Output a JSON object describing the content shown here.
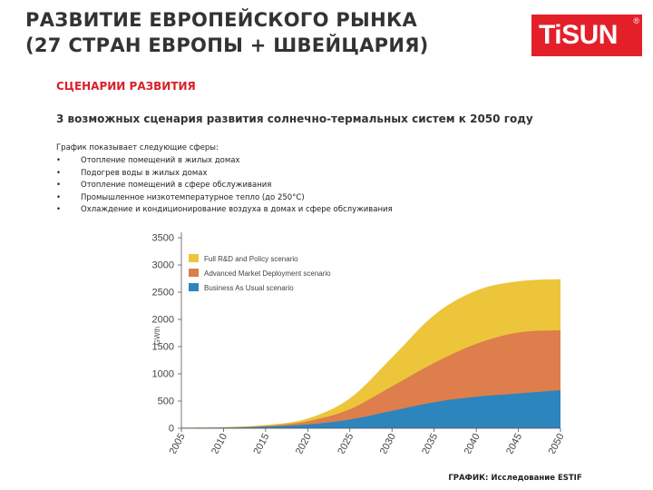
{
  "header": {
    "title_line1": "РАЗВИТИЕ ЕВРОПЕЙСКОГО РЫНКА",
    "title_line2": "(27 СТРАН ЕВРОПЫ + ШВЕЙЦАРИЯ)",
    "logo_text": "TiSUN",
    "logo_reg": "®"
  },
  "subtitle": "СЦЕНАРИИ РАЗВИТИЯ",
  "lead": "3 возможных сценария развития солнечно-термальных систем к 2050 году",
  "intro": "График показывает следующие сферы:",
  "bullets": [
    "Отопление помещений в жилых домах",
    "Подогрев воды в жилых домах",
    "Отопление помещений в сфере обслуживания",
    "Промышленное низкотемпературное тепло (до 250°C)",
    "Охлаждение и кондиционирование воздуха в домах и сфере обслуживания"
  ],
  "bullet_symbol": "•",
  "source": "ГРАФИК: Исследование ESTIF",
  "colors": {
    "brand_red": "#e3202a",
    "subtitle_red": "#d8202a",
    "full_rd": "#ecc53a",
    "advanced": "#dd7e4c",
    "bau": "#2d85bd"
  },
  "chart_data": {
    "type": "area",
    "stacked": true,
    "x": [
      2005,
      2010,
      2015,
      2020,
      2025,
      2030,
      2035,
      2040,
      2045,
      2050
    ],
    "xticks": [
      "2005",
      "2010",
      "2015",
      "2020",
      "2025",
      "2030",
      "2035",
      "2040",
      "2045",
      "2050"
    ],
    "ylim": [
      0,
      3500
    ],
    "yticks": [
      "0",
      "500",
      "1000",
      "1500",
      "2000",
      "2500",
      "3000",
      "3500"
    ],
    "ylabel": "GWth",
    "grid": false,
    "legend_position": "top-left",
    "series": [
      {
        "name": "Business As Usual scenario",
        "color": "#2d85bd",
        "values": [
          8,
          12,
          30,
          70,
          160,
          320,
          480,
          580,
          640,
          700
        ]
      },
      {
        "name": "Advanced Market Deployment scenario",
        "color": "#dd7e4c",
        "values": [
          10,
          15,
          45,
          130,
          350,
          770,
          1200,
          1550,
          1760,
          1800
        ]
      },
      {
        "name": "Full R&D and Policy scenario",
        "color": "#ecc53a",
        "values": [
          12,
          20,
          60,
          180,
          550,
          1300,
          2080,
          2530,
          2700,
          2740
        ]
      }
    ],
    "legend": [
      "Full R&D and Policy scenario",
      "Advanced Market Deployment scenario",
      "Business As Usual scenario"
    ]
  }
}
